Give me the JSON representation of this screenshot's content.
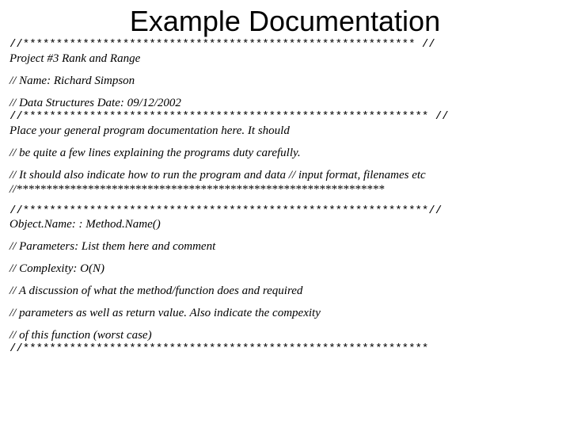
{
  "title": "Example Documentation",
  "lines": {
    "sep1": "//*********************************************************** //",
    "project": "Project #3 Rank and Range",
    "name": "// Name: Richard Simpson",
    "date": "// Data Structures Date: 09/12/2002",
    "sep2": "//************************************************************* //",
    "desc1": "Place your general program documentation here. It should",
    "desc2": "// be quite a few lines explaining the programs duty carefully.",
    "desc3": "// It should also indicate how to run the program and data // input format, filenames etc //**************************************************************",
    "sep3": "//*************************************************************//",
    "obj": "Object.Name: : Method.Name()",
    "params": "// Parameters: List them here and comment",
    "complexity": " // Complexity: O(N)",
    "disc1": "// A discussion of what the method/function does and required",
    "disc2": "// parameters as well as return value. Also indicate the compexity",
    "disc3": "// of this function (worst case)",
    "sep4": "//*************************************************************"
  },
  "colors": {
    "bg": "#ffffff",
    "text": "#000000"
  },
  "fonts": {
    "title_size": 36,
    "body_size": 15,
    "title_family": "Arial",
    "body_family": "Comic Sans MS (italic)"
  }
}
